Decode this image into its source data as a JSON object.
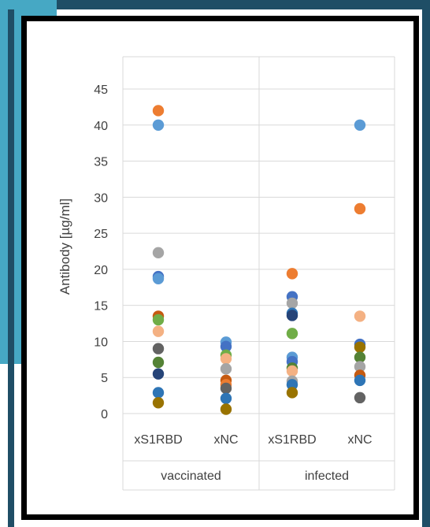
{
  "chart_data": {
    "type": "scatter",
    "title": "",
    "ylabel": "Antibody [µg/ml]",
    "ylim": [
      0,
      45
    ],
    "yticks": [
      0,
      5,
      10,
      15,
      20,
      25,
      30,
      35,
      40,
      45
    ],
    "grid": "horizontal",
    "categories": [
      {
        "label": "xS1RBD",
        "group": "vaccinated"
      },
      {
        "label": "xNC",
        "group": "vaccinated"
      },
      {
        "label": "xS1RBD",
        "group": "infected"
      },
      {
        "label": "xNC",
        "group": "infected"
      }
    ],
    "groups": [
      "vaccinated",
      "infected"
    ],
    "points": [
      {
        "x": 0,
        "y": 42.0,
        "color": "#ED7D31"
      },
      {
        "x": 0,
        "y": 40.0,
        "color": "#5B9BD5"
      },
      {
        "x": 0,
        "y": 22.3,
        "color": "#A5A5A5"
      },
      {
        "x": 0,
        "y": 19.0,
        "color": "#4472C4"
      },
      {
        "x": 0,
        "y": 18.7,
        "color": "#5B9BD5"
      },
      {
        "x": 0,
        "y": 13.5,
        "color": "#C55A11"
      },
      {
        "x": 0,
        "y": 13.0,
        "color": "#70AD47"
      },
      {
        "x": 0,
        "y": 11.4,
        "color": "#F4B183"
      },
      {
        "x": 0,
        "y": 9.0,
        "color": "#636363"
      },
      {
        "x": 0,
        "y": 7.1,
        "color": "#548235"
      },
      {
        "x": 0,
        "y": 5.5,
        "color": "#264478"
      },
      {
        "x": 0,
        "y": 2.9,
        "color": "#2E75B6"
      },
      {
        "x": 0,
        "y": 1.5,
        "color": "#997300"
      },
      {
        "x": 1,
        "y": 9.9,
        "color": "#5B9BD5"
      },
      {
        "x": 1,
        "y": 9.3,
        "color": "#4472C4"
      },
      {
        "x": 1,
        "y": 8.1,
        "color": "#70AD47"
      },
      {
        "x": 1,
        "y": 7.6,
        "color": "#F4B183"
      },
      {
        "x": 1,
        "y": 6.2,
        "color": "#A5A5A5"
      },
      {
        "x": 1,
        "y": 4.6,
        "color": "#C55A11"
      },
      {
        "x": 1,
        "y": 4.0,
        "color": "#ED7D31"
      },
      {
        "x": 1,
        "y": 3.5,
        "color": "#636363"
      },
      {
        "x": 1,
        "y": 2.1,
        "color": "#2E75B6"
      },
      {
        "x": 1,
        "y": 0.6,
        "color": "#997300"
      },
      {
        "x": 2,
        "y": 19.4,
        "color": "#ED7D31"
      },
      {
        "x": 2,
        "y": 16.2,
        "color": "#4472C4"
      },
      {
        "x": 2,
        "y": 15.3,
        "color": "#A5A5A5"
      },
      {
        "x": 2,
        "y": 13.9,
        "color": "#2E75B6"
      },
      {
        "x": 2,
        "y": 13.6,
        "color": "#264478"
      },
      {
        "x": 2,
        "y": 11.1,
        "color": "#70AD47"
      },
      {
        "x": 2,
        "y": 7.8,
        "color": "#5B9BD5"
      },
      {
        "x": 2,
        "y": 7.2,
        "color": "#4472C4"
      },
      {
        "x": 2,
        "y": 6.3,
        "color": "#548235"
      },
      {
        "x": 2,
        "y": 5.9,
        "color": "#F4B183"
      },
      {
        "x": 2,
        "y": 4.5,
        "color": "#A5A5A5"
      },
      {
        "x": 2,
        "y": 4.0,
        "color": "#2E75B6"
      },
      {
        "x": 2,
        "y": 2.9,
        "color": "#997300"
      },
      {
        "x": 3,
        "y": 40.0,
        "color": "#5B9BD5"
      },
      {
        "x": 3,
        "y": 28.4,
        "color": "#ED7D31"
      },
      {
        "x": 3,
        "y": 13.5,
        "color": "#F4B183"
      },
      {
        "x": 3,
        "y": 9.6,
        "color": "#4472C4"
      },
      {
        "x": 3,
        "y": 9.2,
        "color": "#997300"
      },
      {
        "x": 3,
        "y": 7.8,
        "color": "#548235"
      },
      {
        "x": 3,
        "y": 6.5,
        "color": "#A5A5A5"
      },
      {
        "x": 3,
        "y": 5.3,
        "color": "#C55A11"
      },
      {
        "x": 3,
        "y": 4.6,
        "color": "#2E75B6"
      },
      {
        "x": 3,
        "y": 2.2,
        "color": "#636363"
      }
    ]
  }
}
